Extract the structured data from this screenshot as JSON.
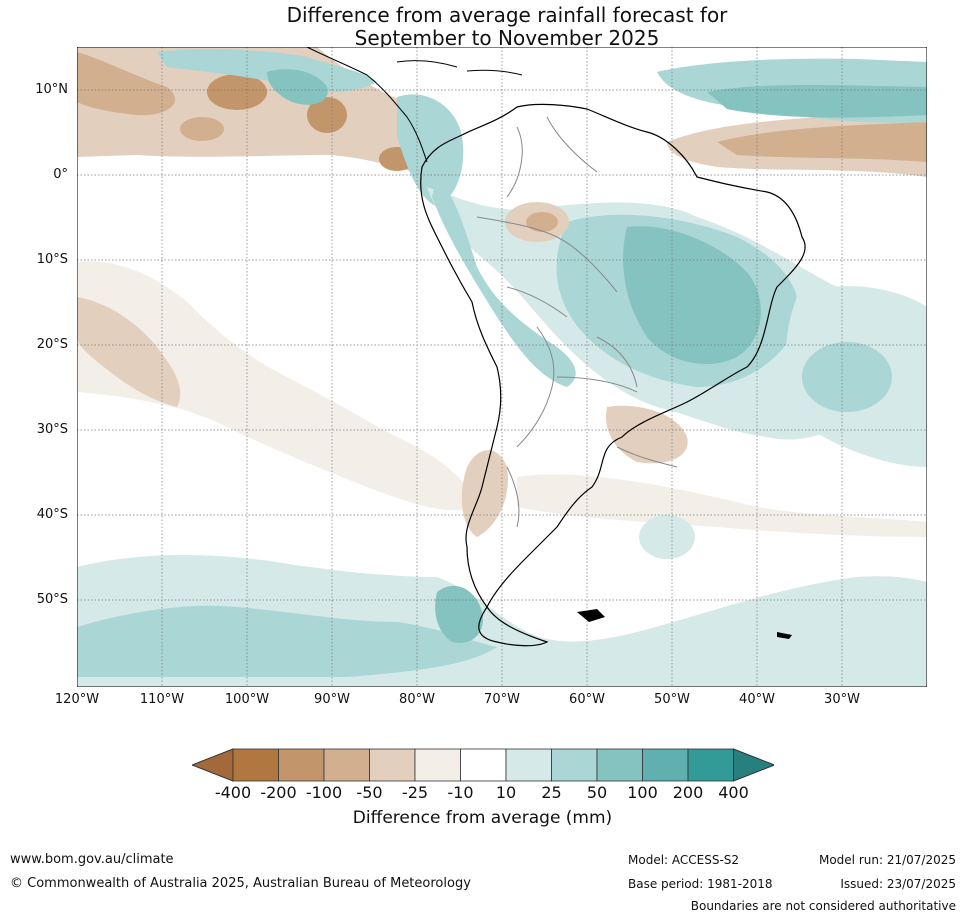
{
  "title_line1": "Difference from average rainfall forecast for",
  "title_line2": "September to November 2025",
  "lat_labels": [
    "10°N",
    "0°",
    "10°S",
    "20°S",
    "30°S",
    "40°S",
    "50°S"
  ],
  "lon_labels": [
    "120°W",
    "110°W",
    "100°W",
    "90°W",
    "80°W",
    "70°W",
    "60°W",
    "50°W",
    "40°W",
    "30°W"
  ],
  "colorbar": {
    "ticks": [
      "-400",
      "-200",
      "-100",
      "-50",
      "-25",
      "-10",
      "10",
      "25",
      "50",
      "100",
      "200",
      "400"
    ],
    "colors": [
      "#a4693a",
      "#b07840",
      "#c3956a",
      "#d2b08f",
      "#e3cfbd",
      "#f4eee8",
      "#ffffff",
      "#d4e9e8",
      "#aad6d5",
      "#85c3c1",
      "#5fb0ae",
      "#329a97",
      "#27807d"
    ],
    "label": "Difference from average (mm)"
  },
  "footer": {
    "website": "www.bom.gov.au/climate",
    "copyright": "© Commonwealth of Australia 2025, Australian Bureau of Meteorology",
    "model": "Model: ACCESS-S2",
    "base_period": "Base period: 1981-2018",
    "model_run": "Model run: 21/07/2025",
    "issued": "Issued: 23/07/2025",
    "disclaimer": "Boundaries are not considered authoritative"
  }
}
